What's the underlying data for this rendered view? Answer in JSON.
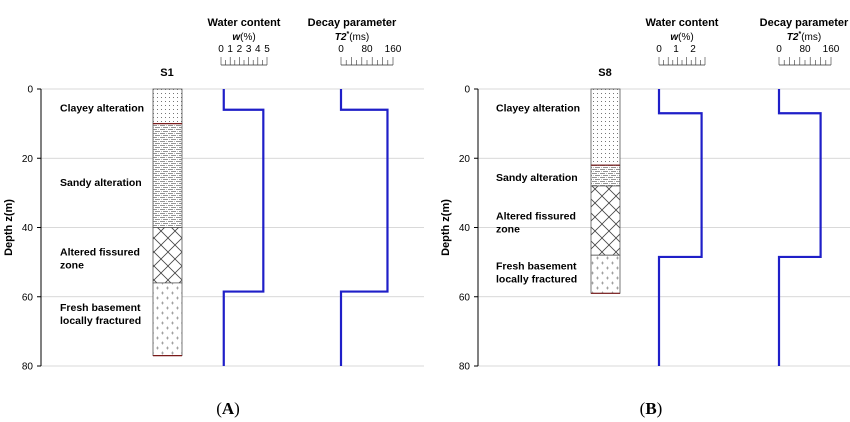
{
  "colors": {
    "profile_line": "#1f1fc8",
    "grid": "#cccccc",
    "contact_line": "#7a1a1a"
  },
  "figure": {
    "depth_axis": {
      "label": "Depth z(m)",
      "range": [
        0,
        80
      ],
      "ticks": [
        0,
        20,
        40,
        60,
        80
      ]
    },
    "water_header": {
      "title": "Water content",
      "symbol": "w",
      "unit": "(%)"
    },
    "decay_header": {
      "title": "Decay parameter",
      "symbol": "T2",
      "sup": "*",
      "unit": "(ms)"
    },
    "panels": [
      {
        "id": "A",
        "label_open": "(",
        "label": "A",
        "label_close": ")",
        "well": "S1",
        "water_ticks": [
          "0",
          "1",
          "2",
          "3",
          "4",
          "5"
        ],
        "water_range": [
          0,
          5
        ],
        "decay_ticks": [
          "0",
          "80",
          "160"
        ],
        "decay_range": [
          0,
          160
        ],
        "column_bottom": 77,
        "layers": [
          {
            "text_lines": [
              "Clayey alteration"
            ],
            "top": 0,
            "bottom": 10,
            "pattern": "clay",
            "label_depth": 5.5
          },
          {
            "text_lines": [
              "Sandy alteration"
            ],
            "top": 10,
            "bottom": 40,
            "pattern": "sand",
            "label_depth": 27
          },
          {
            "text_lines": [
              "Altered fissured",
              "zone"
            ],
            "top": 40,
            "bottom": 56,
            "pattern": "fissured",
            "label_depth": 49
          },
          {
            "text_lines": [
              "Fresh basement",
              "locally fractured"
            ],
            "top": 56,
            "bottom": 77,
            "pattern": "basement",
            "label_depth": 65
          }
        ],
        "water_profile": [
          {
            "from": 0,
            "to": 6,
            "value": 0.3
          },
          {
            "from": 6,
            "to": 58.5,
            "value": 4.6
          },
          {
            "from": 58.5,
            "to": 80,
            "value": 0.3
          }
        ],
        "decay_profile": [
          {
            "from": 0,
            "to": 6,
            "value": 0
          },
          {
            "from": 6,
            "to": 58.5,
            "value": 143
          },
          {
            "from": 58.5,
            "to": 80,
            "value": 0
          }
        ]
      },
      {
        "id": "B",
        "label_open": "(",
        "label": "B",
        "label_close": ")",
        "well": "S8",
        "water_ticks": [
          "0",
          "1",
          "2"
        ],
        "water_range": [
          0,
          2.7
        ],
        "decay_ticks": [
          "0",
          "80",
          "160"
        ],
        "decay_range": [
          0,
          160
        ],
        "column_bottom": 59,
        "layers": [
          {
            "text_lines": [
              "Clayey alteration"
            ],
            "top": 0,
            "bottom": 22,
            "pattern": "clay",
            "label_depth": 5.5
          },
          {
            "text_lines": [
              "Sandy alteration"
            ],
            "top": 22,
            "bottom": 28,
            "pattern": "sand",
            "label_depth": 25.5
          },
          {
            "text_lines": [
              "Altered fissured",
              "zone"
            ],
            "top": 28,
            "bottom": 48,
            "pattern": "fissured",
            "label_depth": 38.5
          },
          {
            "text_lines": [
              "Fresh basement",
              "locally fractured"
            ],
            "top": 48,
            "bottom": 59,
            "pattern": "basement",
            "label_depth": 53
          }
        ],
        "water_profile": [
          {
            "from": 0,
            "to": 7,
            "value": 0
          },
          {
            "from": 7,
            "to": 48.5,
            "value": 2.5
          },
          {
            "from": 48.5,
            "to": 80,
            "value": 0
          }
        ],
        "decay_profile": [
          {
            "from": 0,
            "to": 7,
            "value": 0
          },
          {
            "from": 7,
            "to": 48.5,
            "value": 128
          },
          {
            "from": 48.5,
            "to": 80,
            "value": 0
          }
        ]
      }
    ]
  }
}
